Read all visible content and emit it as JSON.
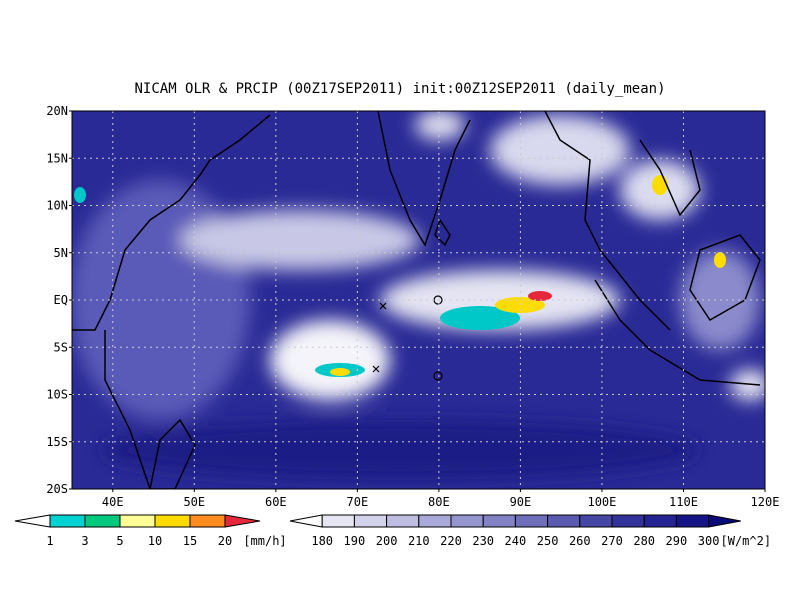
{
  "map": {
    "title": "NICAM OLR & PRCIP (00Z17SEP2011) init:00Z12SEP2011 (daily_mean)",
    "lat_labels": [
      "20N",
      "15N",
      "10N",
      "5N",
      "EQ",
      "5S",
      "10S",
      "15S",
      "20S"
    ],
    "lon_labels": [
      "40E",
      "50E",
      "60E",
      "70E",
      "80E",
      "90E",
      "100E",
      "110E",
      "120E"
    ],
    "precip_scale": {
      "labels": [
        1,
        3,
        5,
        10,
        15,
        20
      ],
      "unit": "[mm/h]",
      "colors": [
        "#ffffff",
        "#00d2d2",
        "#00c87d",
        "#ffff96",
        "#ffdc00",
        "#ff8c1e",
        "#e6283c"
      ]
    },
    "olr_scale": {
      "labels": [
        180,
        190,
        200,
        210,
        220,
        230,
        240,
        250,
        260,
        270,
        280,
        290,
        300
      ],
      "unit": "[W/m^2]",
      "colors": [
        "#ffffff",
        "#e6e6f2",
        "#d2d2ea",
        "#bebee2",
        "#aaaada",
        "#9696cf",
        "#8282c4",
        "#6e6eba",
        "#5a5ab0",
        "#4646a5",
        "#32329b",
        "#232391",
        "#141487",
        "#0a0a78"
      ]
    }
  }
}
